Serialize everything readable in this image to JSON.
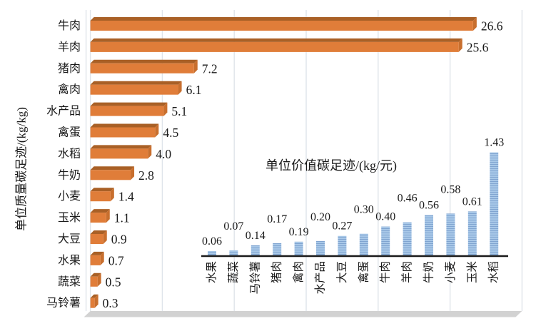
{
  "page": {
    "background": "#FFFFFF"
  },
  "chart_data": [
    {
      "id": "mass_footprint",
      "type": "bar",
      "orientation": "horizontal",
      "title": "",
      "axis_title": "单位质量碳足迹/(kg/kg)",
      "categories": [
        "牛肉",
        "羊肉",
        "猪肉",
        "禽肉",
        "水产品",
        "禽蛋",
        "水稻",
        "牛奶",
        "小麦",
        "玉米",
        "大豆",
        "水果",
        "蔬菜",
        "马铃薯"
      ],
      "values": [
        26.6,
        25.6,
        7.2,
        6.1,
        5.1,
        4.5,
        4.0,
        2.8,
        1.4,
        1.1,
        0.9,
        0.7,
        0.5,
        0.3
      ],
      "value_labels": [
        "26.6",
        "25.6",
        "7.2",
        "6.1",
        "5.1",
        "4.5",
        "4.0",
        "2.8",
        "1.4",
        "1.1",
        "0.9",
        "0.7",
        "0.5",
        "0.3"
      ],
      "xlim": [
        0,
        30
      ],
      "grid_step": 5,
      "grid_on": true,
      "legend": "none",
      "style": {
        "bar_front": "#E07D39",
        "bar_top": "#A96026",
        "bar_end": "#C86F2E",
        "grid_line": "#DFE4EA",
        "floor": "#D2D2D2",
        "text": "#1A1A1A"
      }
    },
    {
      "id": "value_footprint_inset",
      "type": "bar",
      "orientation": "vertical",
      "title": "单位价值碳足迹/(kg/元)",
      "categories": [
        "水果",
        "蔬菜",
        "马铃薯",
        "猪肉",
        "禽肉",
        "水产品",
        "大豆",
        "禽蛋",
        "牛肉",
        "羊肉",
        "牛奶",
        "小麦",
        "玉米",
        "水稻"
      ],
      "values": [
        0.06,
        0.07,
        0.14,
        0.17,
        0.19,
        0.2,
        0.27,
        0.3,
        0.4,
        0.46,
        0.56,
        0.58,
        0.61,
        1.43
      ],
      "value_labels": [
        "0.06",
        "0.07",
        "0.14",
        "0.17",
        "0.19",
        "0.20",
        "0.27",
        "0.30",
        "0.40",
        "0.46",
        "0.56",
        "0.58",
        "0.61",
        "1.43"
      ],
      "ylim": [
        0,
        1.5
      ],
      "grid_on": false,
      "legend": "none",
      "style": {
        "bar_fill": "#A8C8E8",
        "bar_stripe": "#80A4D0",
        "axis_line": "#1A1A1A",
        "text": "#1A1A1A"
      }
    }
  ]
}
